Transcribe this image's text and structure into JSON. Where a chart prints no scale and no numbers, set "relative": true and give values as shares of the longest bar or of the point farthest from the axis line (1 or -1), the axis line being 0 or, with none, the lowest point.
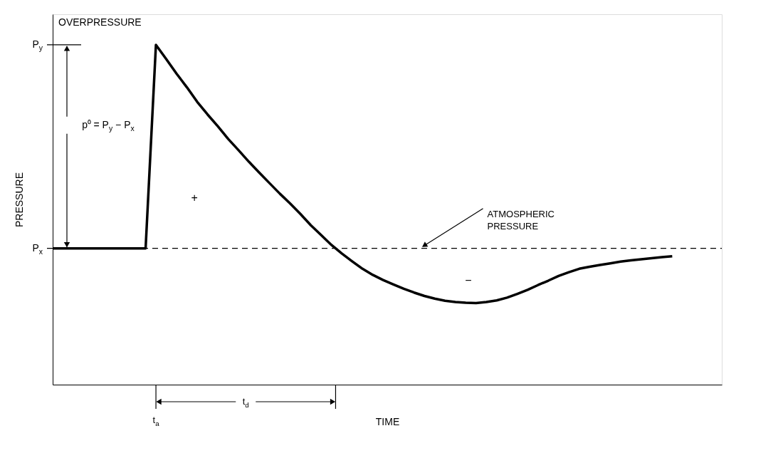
{
  "chart_data": {
    "type": "line",
    "relative": true,
    "xlabel": "TIME",
    "ylabel": "PRESSURE",
    "categories": [
      null,
      null,
      null,
      null,
      null,
      null,
      null,
      null,
      null,
      null,
      null,
      null,
      null,
      null,
      null,
      null,
      null,
      null,
      null,
      null,
      null,
      null,
      null,
      null,
      null,
      null,
      null,
      null,
      null,
      null,
      null,
      null,
      null,
      null,
      null,
      null,
      null,
      null,
      null,
      null,
      null,
      null,
      null,
      null,
      null,
      null,
      null,
      null,
      null,
      null,
      null,
      null,
      null,
      null,
      null,
      null,
      null,
      null,
      null,
      null,
      null
    ],
    "series": [
      {
        "color": "#000000",
        "values": [
          0.401,
          0.401,
          0.401,
          0.401,
          0.401,
          0.401,
          0.401,
          0.401,
          0.401,
          0.401,
          1.0,
          0.958,
          0.915,
          0.875,
          0.832,
          0.795,
          0.76,
          0.723,
          0.69,
          0.656,
          0.624,
          0.593,
          0.562,
          0.533,
          0.502,
          0.469,
          0.44,
          0.411,
          0.386,
          0.363,
          0.341,
          0.323,
          0.308,
          0.295,
          0.282,
          0.271,
          0.261,
          0.253,
          0.247,
          0.243,
          0.241,
          0.24,
          0.243,
          0.248,
          0.256,
          0.267,
          0.279,
          0.293,
          0.306,
          0.32,
          0.331,
          0.341,
          0.347,
          0.352,
          0.357,
          0.362,
          0.366,
          0.369,
          0.372,
          0.375,
          0.378
        ]
      }
    ],
    "ref_lines": [
      {
        "axis": "y",
        "value": 0.401,
        "label": "ATMOSPHERIC PRESSURE",
        "line_style": "dashed",
        "color": "#000000"
      }
    ],
    "annotations": [
      "OVERPRESSURE",
      "t$_{d}$",
      "p⁰ = P$_{y}$ − P$_{x}$",
      "+",
      "−",
      "t$_{a}$",
      "P$_{y}$",
      "P$_{x}$"
    ],
    "marker": "none",
    "line_style": "solid"
  }
}
